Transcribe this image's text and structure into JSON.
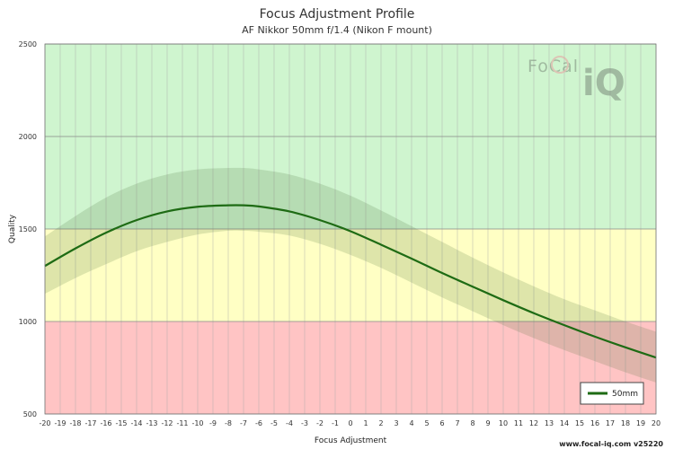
{
  "chart_data": {
    "type": "line",
    "title": "Focus Adjustment Profile",
    "subtitle": "AF Nikkor 50mm f/1.4 (Nikon F mount)",
    "xlabel": "Focus Adjustment",
    "ylabel": "Quality",
    "xlim": [
      -20,
      20
    ],
    "ylim": [
      500,
      2500
    ],
    "x_ticks": [
      "-20",
      "-19",
      "-18",
      "-17",
      "-16",
      "-15",
      "-14",
      "-13",
      "-12",
      "-11",
      "-10",
      "-9",
      "-8",
      "-7",
      "-6",
      "-5",
      "-4",
      "-3",
      "-2",
      "-1",
      "0",
      "1",
      "2",
      "3",
      "4",
      "5",
      "6",
      "7",
      "8",
      "9",
      "10",
      "11",
      "12",
      "13",
      "14",
      "15",
      "16",
      "17",
      "18",
      "19",
      "20"
    ],
    "y_ticks": [
      "500",
      "1000",
      "1500",
      "2000",
      "2500"
    ],
    "bands": [
      {
        "from": 500,
        "to": 1000,
        "color": "#ffc4c4"
      },
      {
        "from": 1000,
        "to": 1500,
        "color": "#ffffc4"
      },
      {
        "from": 1500,
        "to": 2500,
        "color": "#cff5cf"
      }
    ],
    "series": [
      {
        "name": "50mm",
        "color": "#1e6b14",
        "x": [
          -20,
          -18,
          -16,
          -14,
          -12,
          -10,
          -8,
          -7,
          -6,
          -4,
          -2,
          0,
          2,
          4,
          6,
          8,
          10,
          12,
          14,
          16,
          18,
          20
        ],
        "values": [
          1300,
          1395,
          1480,
          1548,
          1595,
          1620,
          1628,
          1628,
          1622,
          1595,
          1548,
          1488,
          1415,
          1340,
          1262,
          1188,
          1115,
          1045,
          980,
          918,
          860,
          805
        ],
        "upper": [
          1460,
          1570,
          1670,
          1745,
          1795,
          1822,
          1830,
          1830,
          1822,
          1795,
          1745,
          1680,
          1600,
          1515,
          1430,
          1345,
          1265,
          1190,
          1120,
          1060,
          1000,
          945
        ],
        "lower": [
          1150,
          1235,
          1310,
          1380,
          1430,
          1470,
          1490,
          1490,
          1485,
          1465,
          1420,
          1360,
          1290,
          1210,
          1130,
          1055,
          980,
          910,
          845,
          785,
          725,
          670
        ]
      }
    ],
    "legend_position": "bottom-right",
    "grid": true
  },
  "watermark": "FoCal iQ",
  "footer": "www.focal-iq.com  v25220"
}
